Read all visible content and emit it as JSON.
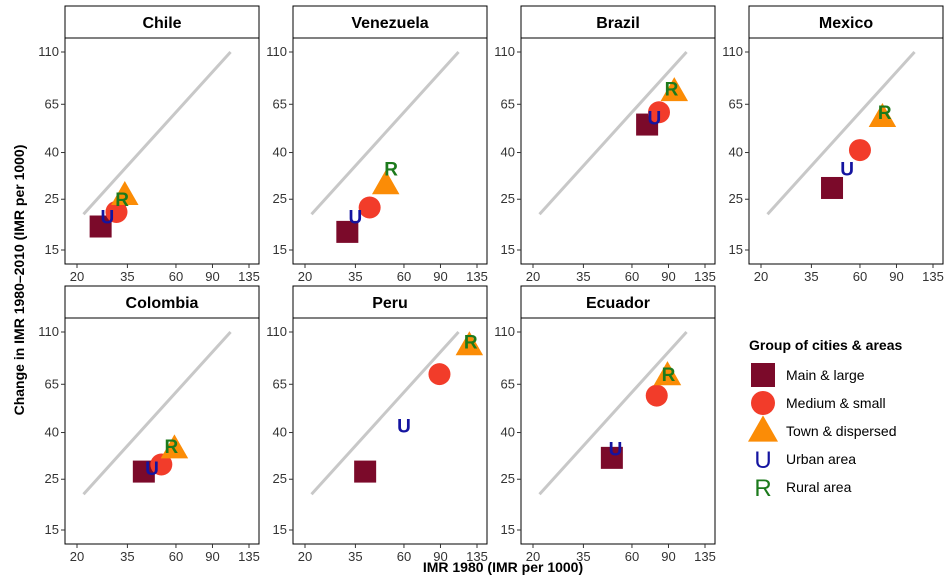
{
  "chart_data": {
    "type": "scatter",
    "xlabel": "IMR 1980 (IMR per 1000)",
    "ylabel": "Change in IMR 1980–2010 (IMR per 1000)",
    "x_scale": "log",
    "y_scale": "log",
    "xlim": [
      20,
      135
    ],
    "ylim": [
      15,
      110
    ],
    "x_ticks": [
      20,
      35,
      60,
      90,
      135
    ],
    "y_ticks": [
      15,
      25,
      40,
      65,
      110
    ],
    "reference_line": "y = x",
    "legend": {
      "title": "Group of cities & areas",
      "position": "right",
      "entries": [
        {
          "key": "main",
          "label": "Main & large",
          "marker": "square",
          "color": "#7b0a2a"
        },
        {
          "key": "medium",
          "label": "Medium & small",
          "marker": "circle",
          "color": "#f23c2a"
        },
        {
          "key": "town",
          "label": "Town & dispersed",
          "marker": "triangle",
          "color": "#fb8c06"
        },
        {
          "key": "urban",
          "label": "Urban area",
          "marker": "letter",
          "letter": "U",
          "color": "#1414a0"
        },
        {
          "key": "rural",
          "label": "Rural area",
          "marker": "letter",
          "letter": "R",
          "color": "#1c7a1c"
        }
      ]
    },
    "panels": [
      {
        "title": "Chile",
        "points": {
          "main": [
            26,
            19
          ],
          "medium": [
            31,
            22
          ],
          "town": [
            34,
            26
          ],
          "urban": [
            28,
            21
          ],
          "rural": [
            33,
            25
          ]
        }
      },
      {
        "title": "Venezuela",
        "points": {
          "main": [
            32,
            18
          ],
          "medium": [
            41,
            23
          ],
          "town": [
            49,
            29
          ],
          "urban": [
            35,
            21
          ],
          "rural": [
            52,
            34
          ]
        }
      },
      {
        "title": "Brazil",
        "points": {
          "main": [
            71,
            53
          ],
          "medium": [
            81,
            60
          ],
          "town": [
            96,
            74
          ],
          "urban": [
            77,
            57
          ],
          "rural": [
            93,
            76
          ]
        }
      },
      {
        "title": "Mexico",
        "points": {
          "main": [
            44,
            28
          ],
          "medium": [
            60,
            41
          ],
          "town": [
            77,
            57
          ],
          "urban": [
            52,
            34
          ],
          "rural": [
            79,
            60
          ]
        }
      },
      {
        "title": "Colombia",
        "points": {
          "main": [
            42,
            27
          ],
          "medium": [
            51,
            29
          ],
          "town": [
            59,
            34
          ],
          "urban": [
            46,
            28
          ],
          "rural": [
            57,
            35
          ]
        }
      },
      {
        "title": "Peru",
        "points": {
          "main": [
            39,
            27
          ],
          "medium": [
            89,
            72
          ],
          "town": [
            124,
            96
          ],
          "urban": [
            60,
            43
          ],
          "rural": [
            126,
            100
          ]
        }
      },
      {
        "title": "Ecuador",
        "points": {
          "main": [
            48,
            31
          ],
          "medium": [
            79,
            58
          ],
          "town": [
            89,
            71
          ],
          "urban": [
            50,
            34
          ],
          "rural": [
            90,
            72
          ]
        }
      }
    ]
  }
}
